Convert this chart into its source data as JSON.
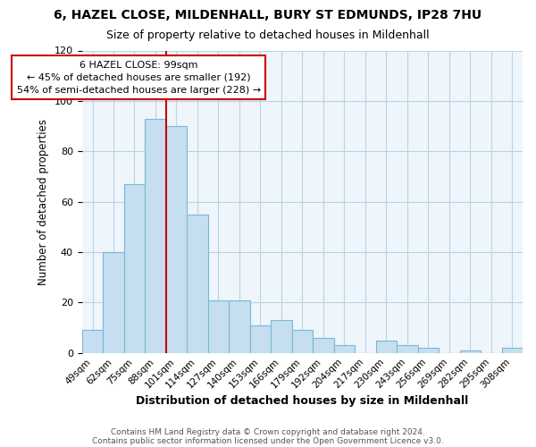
{
  "title": "6, HAZEL CLOSE, MILDENHALL, BURY ST EDMUNDS, IP28 7HU",
  "subtitle": "Size of property relative to detached houses in Mildenhall",
  "xlabel": "Distribution of detached houses by size in Mildenhall",
  "ylabel": "Number of detached properties",
  "bar_labels": [
    "49sqm",
    "62sqm",
    "75sqm",
    "88sqm",
    "101sqm",
    "114sqm",
    "127sqm",
    "140sqm",
    "153sqm",
    "166sqm",
    "179sqm",
    "192sqm",
    "204sqm",
    "217sqm",
    "230sqm",
    "243sqm",
    "256sqm",
    "269sqm",
    "282sqm",
    "295sqm",
    "308sqm"
  ],
  "bar_values": [
    9,
    40,
    67,
    93,
    90,
    55,
    21,
    21,
    11,
    13,
    9,
    6,
    3,
    0,
    5,
    3,
    2,
    0,
    1,
    0,
    2
  ],
  "bar_color": "#c5dff0",
  "bar_edge_color": "#7ab8d4",
  "vline_color": "#cc0000",
  "vline_x": 3.5,
  "annotation_title": "6 HAZEL CLOSE: 99sqm",
  "annotation_line1": "← 45% of detached houses are smaller (192)",
  "annotation_line2": "54% of semi-detached houses are larger (228) →",
  "annotation_box_edge": "#cc0000",
  "ylim": [
    0,
    120
  ],
  "yticks": [
    0,
    20,
    40,
    60,
    80,
    100,
    120
  ],
  "footer1": "Contains HM Land Registry data © Crown copyright and database right 2024.",
  "footer2": "Contains public sector information licensed under the Open Government Licence v3.0.",
  "bg_color": "#eef5fb",
  "title_fontsize": 10,
  "subtitle_fontsize": 9
}
